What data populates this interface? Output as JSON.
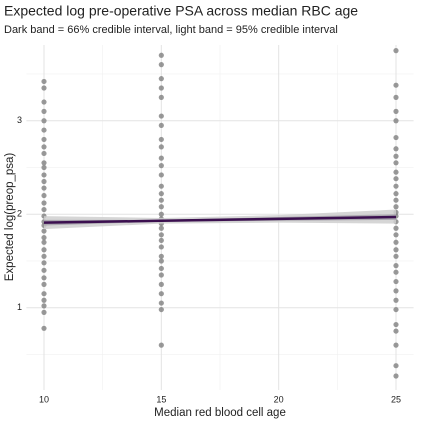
{
  "chart_data": {
    "type": "scatter",
    "title": "Expected log pre-operative PSA across median RBC age",
    "subtitle": "Dark band = 66% credible interval, light band = 95% credible interval",
    "x_label": "Median red blood cell age",
    "y_label": "Expected log(preop_psa)",
    "xlim": [
      9.25,
      25.75
    ],
    "ylim": [
      0.12,
      3.81
    ],
    "xticks": [
      10,
      15,
      20,
      25
    ],
    "yticks": [
      1,
      2,
      3
    ],
    "minor_xticks": [
      12.5,
      17.5,
      22.5
    ],
    "minor_yticks": [
      0.5,
      1.5,
      2.5,
      3.5
    ],
    "grid": true,
    "point_color": "#7f7f7f",
    "points": [
      {
        "x": 10,
        "values": [
          3.42,
          3.35,
          3.2,
          3.1,
          3.0,
          2.9,
          2.8,
          2.72,
          2.65,
          2.55,
          2.5,
          2.42,
          2.35,
          2.28,
          2.2,
          2.12,
          2.05,
          1.98,
          1.92,
          1.88,
          1.82,
          1.75,
          1.7,
          1.62,
          1.55,
          1.48,
          1.4,
          1.32,
          1.25,
          1.15,
          1.08,
          1.02,
          0.95,
          0.78
        ]
      },
      {
        "x": 15,
        "values": [
          3.7,
          3.6,
          3.45,
          3.35,
          3.25,
          3.05,
          2.95,
          2.8,
          2.72,
          2.6,
          2.52,
          2.42,
          2.3,
          2.22,
          2.15,
          2.08,
          2.0,
          1.95,
          1.9,
          1.85,
          1.78,
          1.72,
          1.65,
          1.55,
          1.5,
          1.42,
          1.35,
          1.25,
          1.15,
          1.05,
          0.98,
          0.6
        ]
      },
      {
        "x": 25,
        "values": [
          3.75,
          3.38,
          3.25,
          3.1,
          3.0,
          2.82,
          2.7,
          2.62,
          2.55,
          2.45,
          2.38,
          2.3,
          2.22,
          2.15,
          2.08,
          2.02,
          1.98,
          1.92,
          1.85,
          1.78,
          1.7,
          1.62,
          1.55,
          1.45,
          1.38,
          1.28,
          1.18,
          1.08,
          0.98,
          0.82,
          0.75,
          0.6,
          0.38,
          0.27
        ]
      }
    ],
    "band95": {
      "color": "#cfcfcf",
      "x": [
        10,
        15,
        20,
        25
      ],
      "lower": [
        1.84,
        1.9,
        1.91,
        1.9
      ],
      "upper": [
        1.98,
        1.96,
        1.99,
        2.05
      ]
    },
    "band66": {
      "color": "#a3a0a8",
      "x": [
        10,
        15,
        20,
        25
      ],
      "lower": [
        1.88,
        1.92,
        1.93,
        1.94
      ],
      "upper": [
        1.94,
        1.94,
        1.97,
        2.0
      ]
    },
    "fit": {
      "color": "#3b0f4f",
      "x": [
        10,
        15,
        20,
        25
      ],
      "values": [
        1.91,
        1.93,
        1.95,
        1.97
      ]
    }
  }
}
